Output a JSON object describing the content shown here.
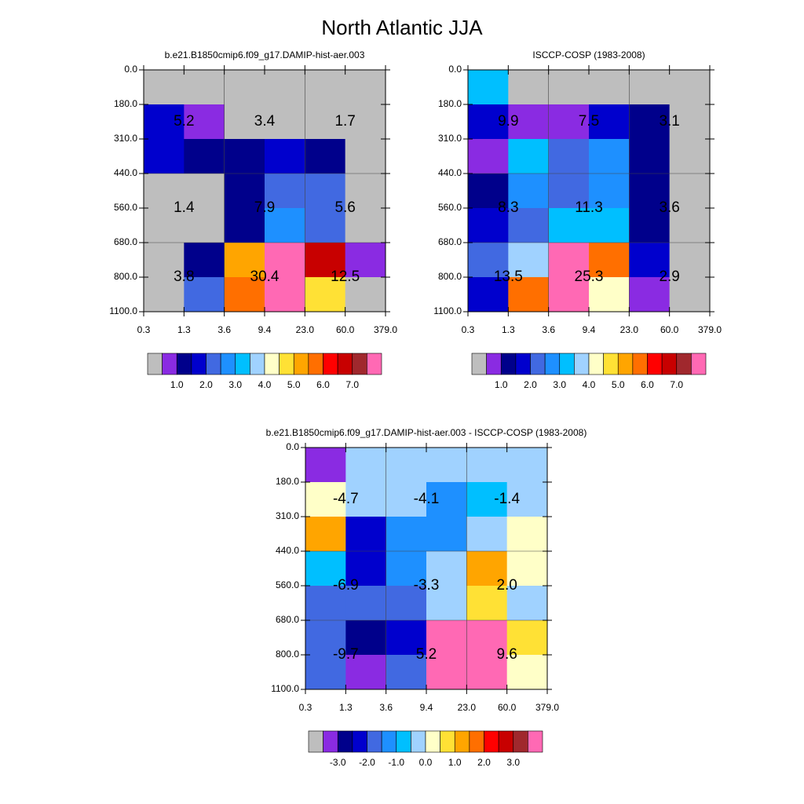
{
  "title": "North Atlantic JJA",
  "chart_data": [
    {
      "type": "heatmap",
      "title": "b.e21.B1850cmip6.f09_g17.DAMIP-hist-aer.003",
      "xedges": [
        "0.3",
        "1.3",
        "3.6",
        "9.4",
        "23.0",
        "60.0",
        "379.0"
      ],
      "yedges": [
        "0.0",
        "180.0",
        "310.0",
        "440.0",
        "560.0",
        "680.0",
        "800.0",
        "1100.0"
      ],
      "cells": [
        [
          "#bebebe",
          "#bebebe",
          "#bebebe",
          "#bebebe",
          "#bebebe",
          "#bebebe"
        ],
        [
          "#0000cd",
          "#8a2be2",
          "#bebebe",
          "#bebebe",
          "#bebebe",
          "#bebebe"
        ],
        [
          "#0000cd",
          "#00008b",
          "#00008b",
          "#0000cd",
          "#00008b",
          "#bebebe"
        ],
        [
          "#bebebe",
          "#bebebe",
          "#00008b",
          "#4169e1",
          "#4169e1",
          "#bebebe"
        ],
        [
          "#bebebe",
          "#bebebe",
          "#00008b",
          "#1e90ff",
          "#4169e1",
          "#bebebe"
        ],
        [
          "#bebebe",
          "#00008b",
          "#ffa500",
          "#ff69b4",
          "#c80000",
          "#8a2be2"
        ],
        [
          "#bebebe",
          "#4169e1",
          "#ff6f00",
          "#ff69b4",
          "#ffe135",
          "#bebebe"
        ]
      ],
      "annotations": [
        [
          5.2,
          3.4,
          1.7
        ],
        [
          1.4,
          7.9,
          5.6
        ],
        [
          3.8,
          30.4,
          12.5
        ]
      ],
      "colorbar": {
        "colors": [
          "#bebebe",
          "#8a2be2",
          "#00008b",
          "#0000cd",
          "#4169e1",
          "#1e90ff",
          "#00bfff",
          "#a0d2ff",
          "#ffffc8",
          "#ffe135",
          "#ffa500",
          "#ff6f00",
          "#ff0000",
          "#c80000",
          "#a0282d",
          "#ff69b4"
        ],
        "clim": [
          0,
          8
        ],
        "ticks": [
          {
            "value": 1,
            "label": "1.0"
          },
          {
            "value": 2,
            "label": "2.0"
          },
          {
            "value": 3,
            "label": "3.0"
          },
          {
            "value": 4,
            "label": "4.0"
          },
          {
            "value": 5,
            "label": "5.0"
          },
          {
            "value": 6,
            "label": "6.0"
          },
          {
            "value": 7,
            "label": "7.0"
          }
        ]
      }
    },
    {
      "type": "heatmap",
      "title": "ISCCP-COSP (1983-2008)",
      "xedges": [
        "0.3",
        "1.3",
        "3.6",
        "9.4",
        "23.0",
        "60.0",
        "379.0"
      ],
      "yedges": [
        "0.0",
        "180.0",
        "310.0",
        "440.0",
        "560.0",
        "680.0",
        "800.0",
        "1100.0"
      ],
      "cells": [
        [
          "#00bfff",
          "#bebebe",
          "#bebebe",
          "#bebebe",
          "#bebebe",
          "#bebebe"
        ],
        [
          "#0000cd",
          "#8a2be2",
          "#8a2be2",
          "#0000cd",
          "#00008b",
          "#bebebe"
        ],
        [
          "#8a2be2",
          "#00bfff",
          "#4169e1",
          "#1e90ff",
          "#00008b",
          "#bebebe"
        ],
        [
          "#00008b",
          "#1e90ff",
          "#4169e1",
          "#1e90ff",
          "#00008b",
          "#bebebe"
        ],
        [
          "#0000cd",
          "#4169e1",
          "#00bfff",
          "#00bfff",
          "#00008b",
          "#bebebe"
        ],
        [
          "#4169e1",
          "#a0d2ff",
          "#ff69b4",
          "#ff6f00",
          "#0000cd",
          "#bebebe"
        ],
        [
          "#0000cd",
          "#ff6f00",
          "#ff69b4",
          "#ffffc8",
          "#8a2be2",
          "#bebebe"
        ]
      ],
      "annotations": [
        [
          9.9,
          7.5,
          3.1
        ],
        [
          8.3,
          11.3,
          3.6
        ],
        [
          13.5,
          25.3,
          2.9
        ]
      ],
      "colorbar": {
        "colors": [
          "#bebebe",
          "#8a2be2",
          "#00008b",
          "#0000cd",
          "#4169e1",
          "#1e90ff",
          "#00bfff",
          "#a0d2ff",
          "#ffffc8",
          "#ffe135",
          "#ffa500",
          "#ff6f00",
          "#ff0000",
          "#c80000",
          "#a0282d",
          "#ff69b4"
        ],
        "clim": [
          0,
          8
        ],
        "ticks": [
          {
            "value": 1,
            "label": "1.0"
          },
          {
            "value": 2,
            "label": "2.0"
          },
          {
            "value": 3,
            "label": "3.0"
          },
          {
            "value": 4,
            "label": "4.0"
          },
          {
            "value": 5,
            "label": "5.0"
          },
          {
            "value": 6,
            "label": "6.0"
          },
          {
            "value": 7,
            "label": "7.0"
          }
        ]
      }
    },
    {
      "type": "heatmap",
      "title": "b.e21.B1850cmip6.f09_g17.DAMIP-hist-aer.003 - ISCCP-COSP (1983-2008)",
      "xedges": [
        "0.3",
        "1.3",
        "3.6",
        "9.4",
        "23.0",
        "60.0",
        "379.0"
      ],
      "yedges": [
        "0.0",
        "180.0",
        "310.0",
        "440.0",
        "560.0",
        "680.0",
        "800.0",
        "1100.0"
      ],
      "cells": [
        [
          "#8a2be2",
          "#a0d2ff",
          "#a0d2ff",
          "#a0d2ff",
          "#a0d2ff",
          "#a0d2ff"
        ],
        [
          "#ffffc8",
          "#a0d2ff",
          "#a0d2ff",
          "#1e90ff",
          "#00bfff",
          "#a0d2ff"
        ],
        [
          "#ffa500",
          "#0000cd",
          "#1e90ff",
          "#1e90ff",
          "#a0d2ff",
          "#ffffc8"
        ],
        [
          "#00bfff",
          "#0000cd",
          "#1e90ff",
          "#a0d2ff",
          "#ffa500",
          "#ffffc8"
        ],
        [
          "#4169e1",
          "#4169e1",
          "#4169e1",
          "#a0d2ff",
          "#ffe135",
          "#a0d2ff"
        ],
        [
          "#4169e1",
          "#00008b",
          "#0000cd",
          "#ff69b4",
          "#ff69b4",
          "#ffe135"
        ],
        [
          "#4169e1",
          "#8a2be2",
          "#4169e1",
          "#ff69b4",
          "#ff69b4",
          "#ffffc8"
        ]
      ],
      "annotations": [
        [
          -4.7,
          -4.1,
          -1.4
        ],
        [
          -6.9,
          -3.3,
          {
            "value": 2,
            "label": "2.0"
          }
        ],
        [
          -9.7,
          5.2,
          9.6
        ]
      ],
      "colorbar": {
        "colors": [
          "#bebebe",
          "#8a2be2",
          "#00008b",
          "#0000cd",
          "#4169e1",
          "#1e90ff",
          "#00bfff",
          "#a0d2ff",
          "#ffffc8",
          "#ffe135",
          "#ffa500",
          "#ff6f00",
          "#ff0000",
          "#c80000",
          "#a0282d",
          "#ff69b4"
        ],
        "clim": [
          -4,
          4
        ],
        "ticks": [
          {
            "value": -3,
            "label": "-3.0"
          },
          {
            "value": -2,
            "label": "-2.0"
          },
          {
            "value": -1,
            "label": "-1.0"
          },
          {
            "value": 0,
            "label": "0.0"
          },
          {
            "value": 1,
            "label": "1.0"
          },
          {
            "value": 2,
            "label": "2.0"
          },
          {
            "value": 3,
            "label": "3.0"
          }
        ]
      }
    }
  ]
}
